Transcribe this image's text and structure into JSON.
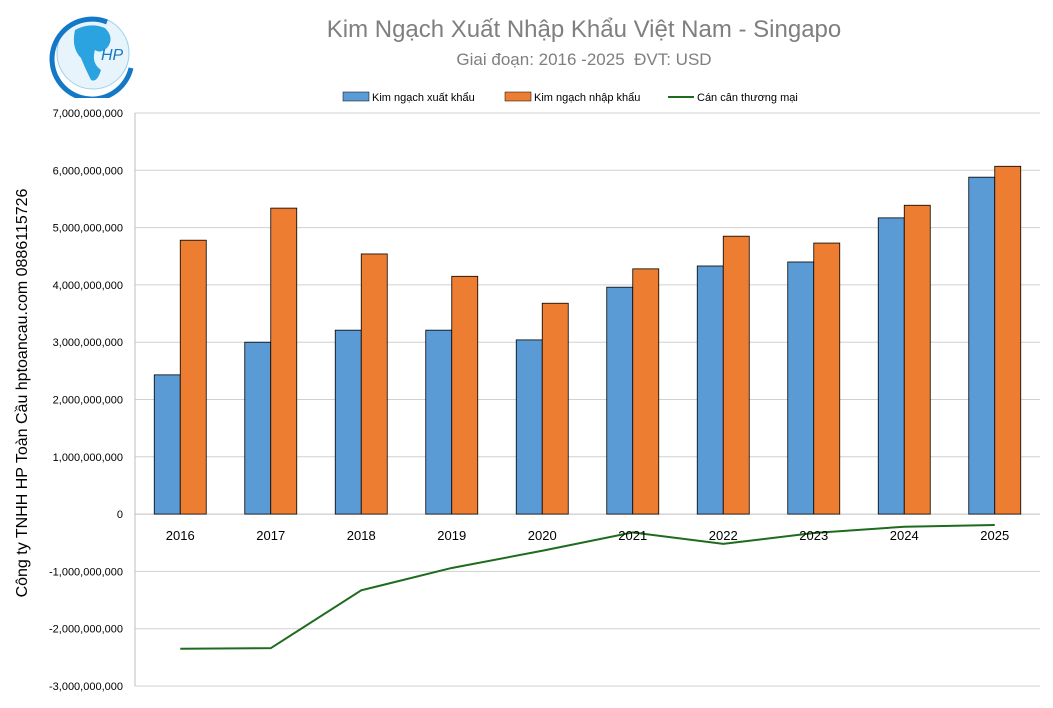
{
  "logo": {
    "text": "HP"
  },
  "side_label": "Công ty TNHH HP Toàn Cầu hptoancau.com 0886115726",
  "chart_data": {
    "type": "bar",
    "title": "Kim Ngạch Xuất Nhập Khẩu Việt Nam - Singapo",
    "subtitle": "Giai đoạn: 2016 -2025  ĐVT: USD",
    "categories": [
      "2016",
      "2017",
      "2018",
      "2019",
      "2020",
      "2021",
      "2022",
      "2023",
      "2024",
      "2025"
    ],
    "series": [
      {
        "name": "Kim ngạch xuất khẩu",
        "type": "bar",
        "color": "#5B9BD5",
        "values": [
          2430000000,
          3000000000,
          3210000000,
          3210000000,
          3040000000,
          3960000000,
          4330000000,
          4400000000,
          5170000000,
          5880000000
        ]
      },
      {
        "name": "Kim ngạch nhập khẩu",
        "type": "bar",
        "color": "#ED7D31",
        "values": [
          4780000000,
          5340000000,
          4540000000,
          4150000000,
          3680000000,
          4280000000,
          4850000000,
          4730000000,
          5390000000,
          6070000000
        ]
      },
      {
        "name": "Cán cân thương mại",
        "type": "line",
        "color": "#1E6B1E",
        "values": [
          -2350000000,
          -2340000000,
          -1330000000,
          -940000000,
          -640000000,
          -320000000,
          -520000000,
          -330000000,
          -220000000,
          -190000000
        ]
      }
    ],
    "ylim": [
      -3000000000,
      7000000000
    ],
    "yticks": [
      -3000000000,
      -2000000000,
      -1000000000,
      0,
      1000000000,
      2000000000,
      3000000000,
      4000000000,
      5000000000,
      6000000000,
      7000000000
    ],
    "ytick_labels": [
      "-3,000,000,000",
      "-2,000,000,000",
      "-1,000,000,000",
      "0",
      "1,000,000,000",
      "2,000,000,000",
      "3,000,000,000",
      "4,000,000,000",
      "5,000,000,000",
      "6,000,000,000",
      "7,000,000,000"
    ],
    "grid": true,
    "legend": "top"
  }
}
